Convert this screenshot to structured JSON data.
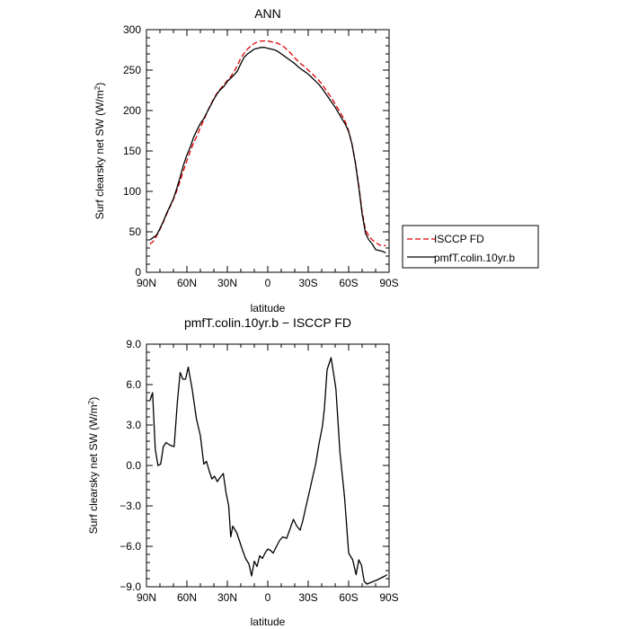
{
  "chart_data": [
    {
      "type": "line",
      "title": "ANN",
      "xlabel": "latitude",
      "ylabel": "Surf clearsky net SW (W/m²)",
      "ylabel_main": "Surf clearsky net SW (W/m",
      "ylabel_sup": "2",
      "ylabel_end": ")",
      "xlim": [
        90,
        -90
      ],
      "ylim": [
        0,
        300
      ],
      "xticks": [
        {
          "value": 90,
          "label": "90N"
        },
        {
          "value": 60,
          "label": "60N"
        },
        {
          "value": 30,
          "label": "30N"
        },
        {
          "value": 0,
          "label": "0"
        },
        {
          "value": -30,
          "label": "30S"
        },
        {
          "value": -60,
          "label": "60S"
        },
        {
          "value": -90,
          "label": "90S"
        }
      ],
      "yticks": [
        {
          "value": 0,
          "label": "0"
        },
        {
          "value": 50,
          "label": "50"
        },
        {
          "value": 100,
          "label": "100"
        },
        {
          "value": 150,
          "label": "150"
        },
        {
          "value": 200,
          "label": "200"
        },
        {
          "value": 250,
          "label": "250"
        },
        {
          "value": 300,
          "label": "300"
        }
      ],
      "legend_position": "outside-right",
      "series": [
        {
          "name": "ISCCP FD",
          "color": "#e00000",
          "dash": "dashed",
          "x": [
            87.5,
            85,
            82.5,
            80,
            77.5,
            75,
            72.5,
            70,
            67.5,
            65,
            62.5,
            60,
            57.5,
            55,
            52.5,
            50,
            47.5,
            45,
            42.5,
            40,
            37.5,
            35,
            32.5,
            30,
            27.5,
            25,
            22.5,
            20,
            17.5,
            15,
            12.5,
            10,
            7.5,
            5,
            2.5,
            0,
            -2.5,
            -5,
            -7.5,
            -10,
            -12.5,
            -15,
            -17.5,
            -20,
            -22.5,
            -25,
            -27.5,
            -30,
            -32.5,
            -35,
            -37.5,
            -40,
            -42.5,
            -45,
            -47.5,
            -50,
            -52.5,
            -55,
            -57.5,
            -60,
            -62.5,
            -65,
            -67.5,
            -70,
            -72.5,
            -75,
            -77.5,
            -80,
            -82.5,
            -85,
            -87.5
          ],
          "values": [
            35,
            38,
            45,
            53,
            62,
            72,
            81,
            90,
            101,
            113,
            126,
            138,
            150,
            160,
            169,
            179,
            188,
            198,
            207,
            215,
            222,
            227,
            232,
            237,
            242,
            248,
            256,
            265,
            271,
            276,
            280,
            283,
            285,
            286,
            286,
            286,
            285,
            284,
            283,
            281,
            278,
            274,
            270,
            265,
            261,
            257,
            254,
            250,
            246,
            242,
            238,
            233,
            227,
            221,
            215,
            208,
            201,
            194,
            186,
            175,
            158,
            136,
            108,
            75,
            52,
            45,
            40,
            37,
            34,
            33,
            33
          ]
        },
        {
          "name": "pmfT.colin.10yr.b",
          "color": "#000000",
          "dash": "solid",
          "x": [
            87.5,
            85,
            82.5,
            80,
            77.5,
            75,
            72.5,
            70,
            67.5,
            65,
            62.5,
            60,
            57.5,
            55,
            52.5,
            50,
            47.5,
            45,
            42.5,
            40,
            37.5,
            35,
            32.5,
            30,
            27.5,
            25,
            22.5,
            20,
            17.5,
            15,
            12.5,
            10,
            7.5,
            5,
            2.5,
            0,
            -2.5,
            -5,
            -7.5,
            -10,
            -12.5,
            -15,
            -17.5,
            -20,
            -22.5,
            -25,
            -27.5,
            -30,
            -32.5,
            -35,
            -37.5,
            -40,
            -42.5,
            -45,
            -47.5,
            -50,
            -52.5,
            -55,
            -57.5,
            -60,
            -62.5,
            -65,
            -67.5,
            -70,
            -72.5,
            -75,
            -77.5,
            -80,
            -82.5,
            -85,
            -87.5
          ],
          "values": [
            40,
            43,
            46,
            54,
            63,
            73,
            82,
            91,
            104,
            118,
            133,
            145,
            155,
            167,
            176,
            184,
            190,
            198,
            206,
            214,
            221,
            226,
            230,
            236,
            240,
            244,
            249,
            258,
            266,
            270,
            273,
            276,
            277,
            278,
            278,
            277,
            276,
            275,
            273,
            270,
            267,
            264,
            261,
            258,
            254,
            251,
            248,
            245,
            241,
            237,
            233,
            228,
            222,
            216,
            210,
            204,
            197,
            190,
            183,
            174,
            158,
            135,
            105,
            72,
            48,
            40,
            35,
            28,
            27,
            26,
            24
          ]
        }
      ]
    },
    {
      "type": "line",
      "title": "pmfT.colin.10yr.b − ISCCP FD",
      "xlabel": "latitude",
      "ylabel": "Surf clearsky net SW (W/m²)",
      "ylabel_main": "Surf clearsky net SW (W/m",
      "ylabel_sup": "2",
      "ylabel_end": ")",
      "xlim": [
        90,
        -90
      ],
      "ylim": [
        -9,
        9
      ],
      "xticks": [
        {
          "value": 90,
          "label": "90N"
        },
        {
          "value": 60,
          "label": "60N"
        },
        {
          "value": 30,
          "label": "30N"
        },
        {
          "value": 0,
          "label": "0"
        },
        {
          "value": -30,
          "label": "30S"
        },
        {
          "value": -60,
          "label": "60S"
        },
        {
          "value": -90,
          "label": "90S"
        }
      ],
      "yticks": [
        {
          "value": -9,
          "label": "−9.0"
        },
        {
          "value": -6,
          "label": "−6.0"
        },
        {
          "value": -3,
          "label": "−3.0"
        },
        {
          "value": 0,
          "label": "0.0"
        },
        {
          "value": 3,
          "label": "3.0"
        },
        {
          "value": 6,
          "label": "6.0"
        },
        {
          "value": 9,
          "label": "9.0"
        }
      ],
      "series": [
        {
          "color": "#000000",
          "dash": "solid",
          "x": [
            87.5,
            85.5,
            83.5,
            81.5,
            79.5,
            77.5,
            75.5,
            72.5,
            69.5,
            67,
            65,
            63,
            61,
            59,
            56,
            53,
            50,
            47.5,
            45.5,
            43.5,
            41.5,
            39.5,
            37.5,
            35.5,
            33,
            31,
            29,
            27.5,
            26,
            23,
            21,
            19,
            16.5,
            14,
            12,
            10,
            8,
            6,
            4,
            2,
            0,
            -2,
            -4,
            -6,
            -8.5,
            -11,
            -14,
            -16.5,
            -19,
            -21.5,
            -24,
            -26,
            -28,
            -30.5,
            -33,
            -35.5,
            -38,
            -40.5,
            -42,
            -44,
            -47,
            -50.5,
            -53.5,
            -57,
            -60,
            -63,
            -65.5,
            -67.5,
            -69.5,
            -71.5,
            -73.5,
            -76,
            -78.5,
            -81,
            -83,
            -85,
            -87,
            -88.5
          ],
          "values": [
            4.8,
            5.4,
            1.2,
            0.0,
            0.1,
            1.4,
            1.7,
            1.5,
            1.4,
            4.8,
            6.9,
            6.4,
            6.4,
            7.3,
            5.6,
            3.5,
            2.2,
            0.1,
            0.3,
            -0.4,
            -1.0,
            -0.8,
            -1.2,
            -0.9,
            -0.6,
            -2.0,
            -3.0,
            -5.3,
            -4.5,
            -5.0,
            -5.6,
            -6.2,
            -6.9,
            -7.3,
            -8.2,
            -7.1,
            -7.5,
            -6.7,
            -6.9,
            -6.5,
            -6.2,
            -6.3,
            -6.5,
            -6.1,
            -5.6,
            -5.3,
            -5.4,
            -4.7,
            -4.0,
            -4.5,
            -4.8,
            -4.1,
            -3.2,
            -2.1,
            -1.0,
            0.1,
            1.6,
            2.9,
            4.2,
            7.1,
            8.0,
            5.7,
            1.0,
            -2.4,
            -6.5,
            -7.0,
            -8.1,
            -7.0,
            -7.4,
            -8.6,
            -8.8,
            -8.7,
            -8.6,
            -8.5,
            -8.4,
            -8.3,
            -8.2,
            -8.1
          ]
        }
      ]
    }
  ]
}
